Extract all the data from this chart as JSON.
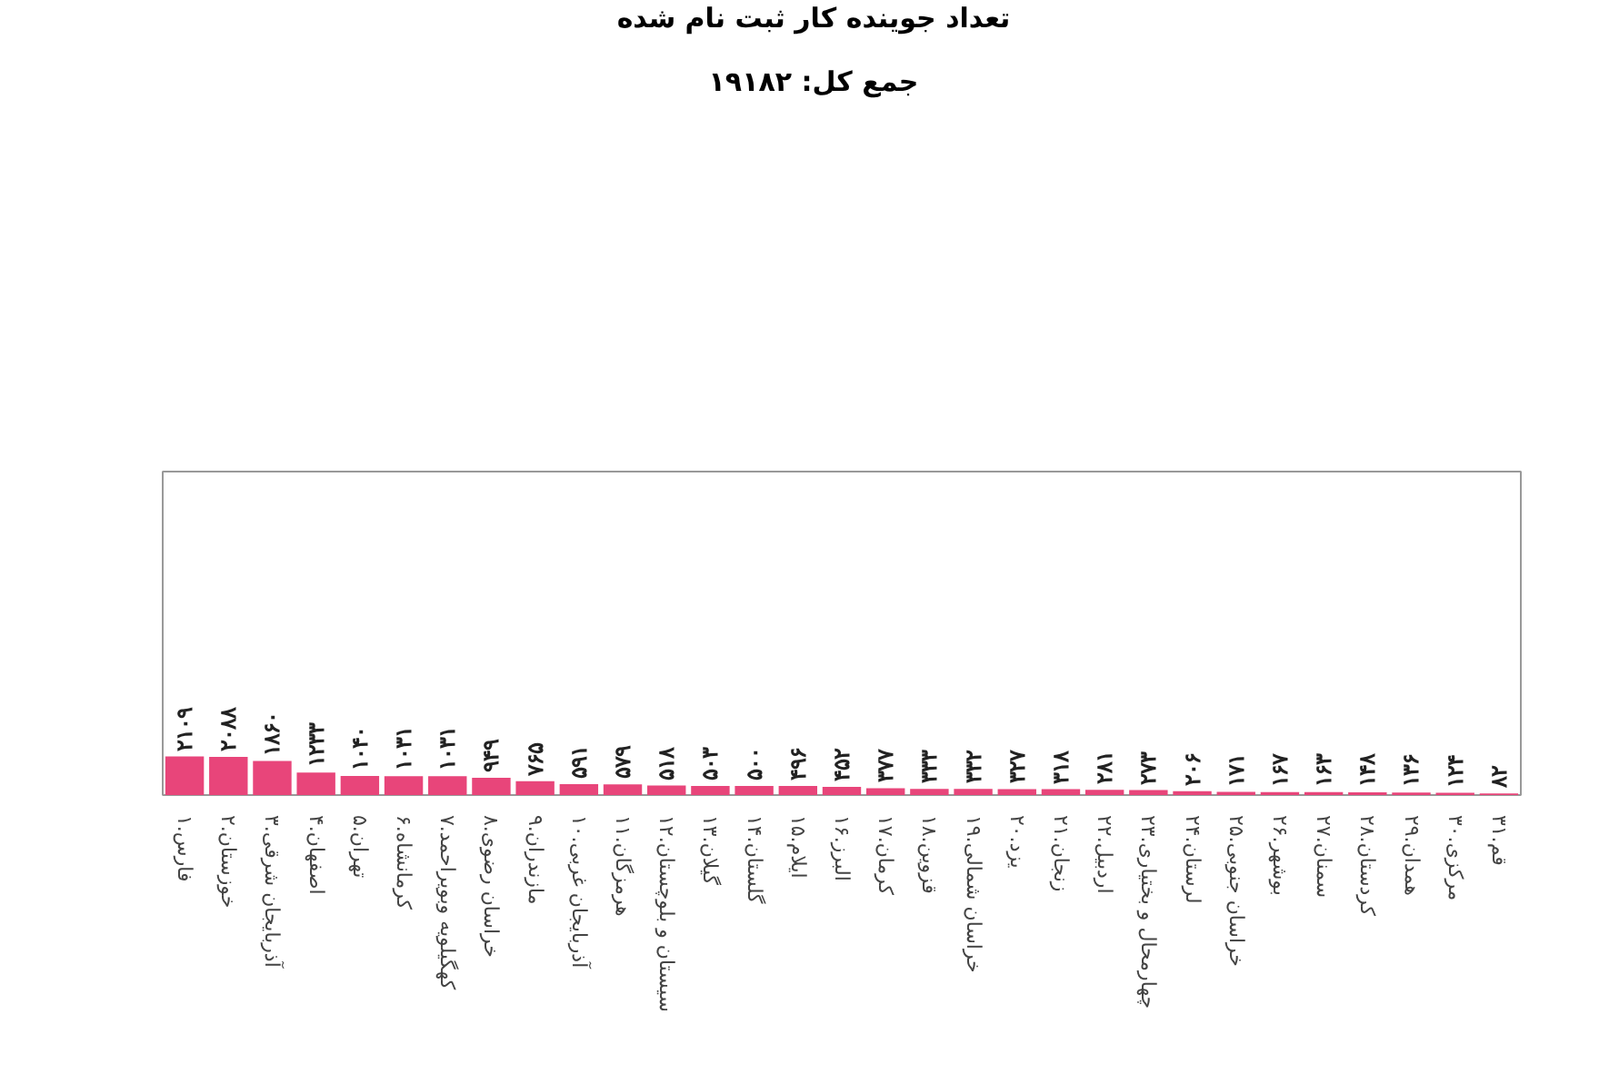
{
  "chart_data": {
    "type": "bar",
    "title": "تعداد جوینده کار ثبت نام شده",
    "subtitle": "جمع کل: ۱۹۱۸۲",
    "categories": [
      "۱.فارس",
      "۲.خوزستان",
      "۳.آذربایجان شرقی",
      "۴.اصفهان",
      "۵.تهران",
      "۶.کرمانشاه",
      "۷.کهگیلویه وبویراحمد",
      "۸.خراسان رضوی",
      "۹.مازندران",
      "۱۰.آذربایجان غربی",
      "۱۱.هرمزگان",
      "۱۲.سیستان و بلوچستان",
      "۱۳.گیلان",
      "۱۴.گلستان",
      "۱۵.ایلام",
      "۱۶.البرز",
      "۱۷.کرمان",
      "۱۸.قزوین",
      "۱۹.خراسان شمالی",
      "۲۰.یزد",
      "۲۱.زنجان",
      "۲۲.اردبیل",
      "۲۳.چهارمحال و بختیاری",
      "۲۴.لرستان",
      "۲۵.خراسان جنوبی",
      "۲۶.بوشهر",
      "۲۷.سمنان",
      "۲۸.کردستان",
      "۲۹.همدان",
      "۳۰.مرکزی",
      "۳۱.قم"
    ],
    "values": [
      2109,
      2088,
      1860,
      1233,
      1040,
      1031,
      1031,
      949,
      765,
      591,
      579,
      518,
      503,
      500,
      496,
      452,
      377,
      333,
      332,
      327,
      318,
      281,
      273,
      206,
      171,
      167,
      163,
      148,
      136,
      124,
      82
    ],
    "value_labels": [
      "۲۱۰۹",
      "۲۰۸۸",
      "۱۸۶۰",
      "۱۲۳۳",
      "۱۰۴۰",
      "۱۰۳۱",
      "۱۰۳۱",
      "۹۴۹",
      "۷۶۵",
      "۵۹۱",
      "۵۷۹",
      "۵۱۸",
      "۵۰۳",
      "۵۰۰",
      "۴۹۶",
      "۴۵۲",
      "۳۷۷",
      "۳۳۳",
      "۳۳۲",
      "۳۲۷",
      "۳۱۸",
      "۲۸۱",
      "۲۷۳",
      "۲۰۶",
      "۱۷۱",
      "۱۶۷",
      "۱۶۳",
      "۱۴۸",
      "۱۳۶",
      "۱۲۴",
      "۸۲"
    ],
    "color": "#e8457a",
    "tick_labels": "x",
    "grid": false
  }
}
